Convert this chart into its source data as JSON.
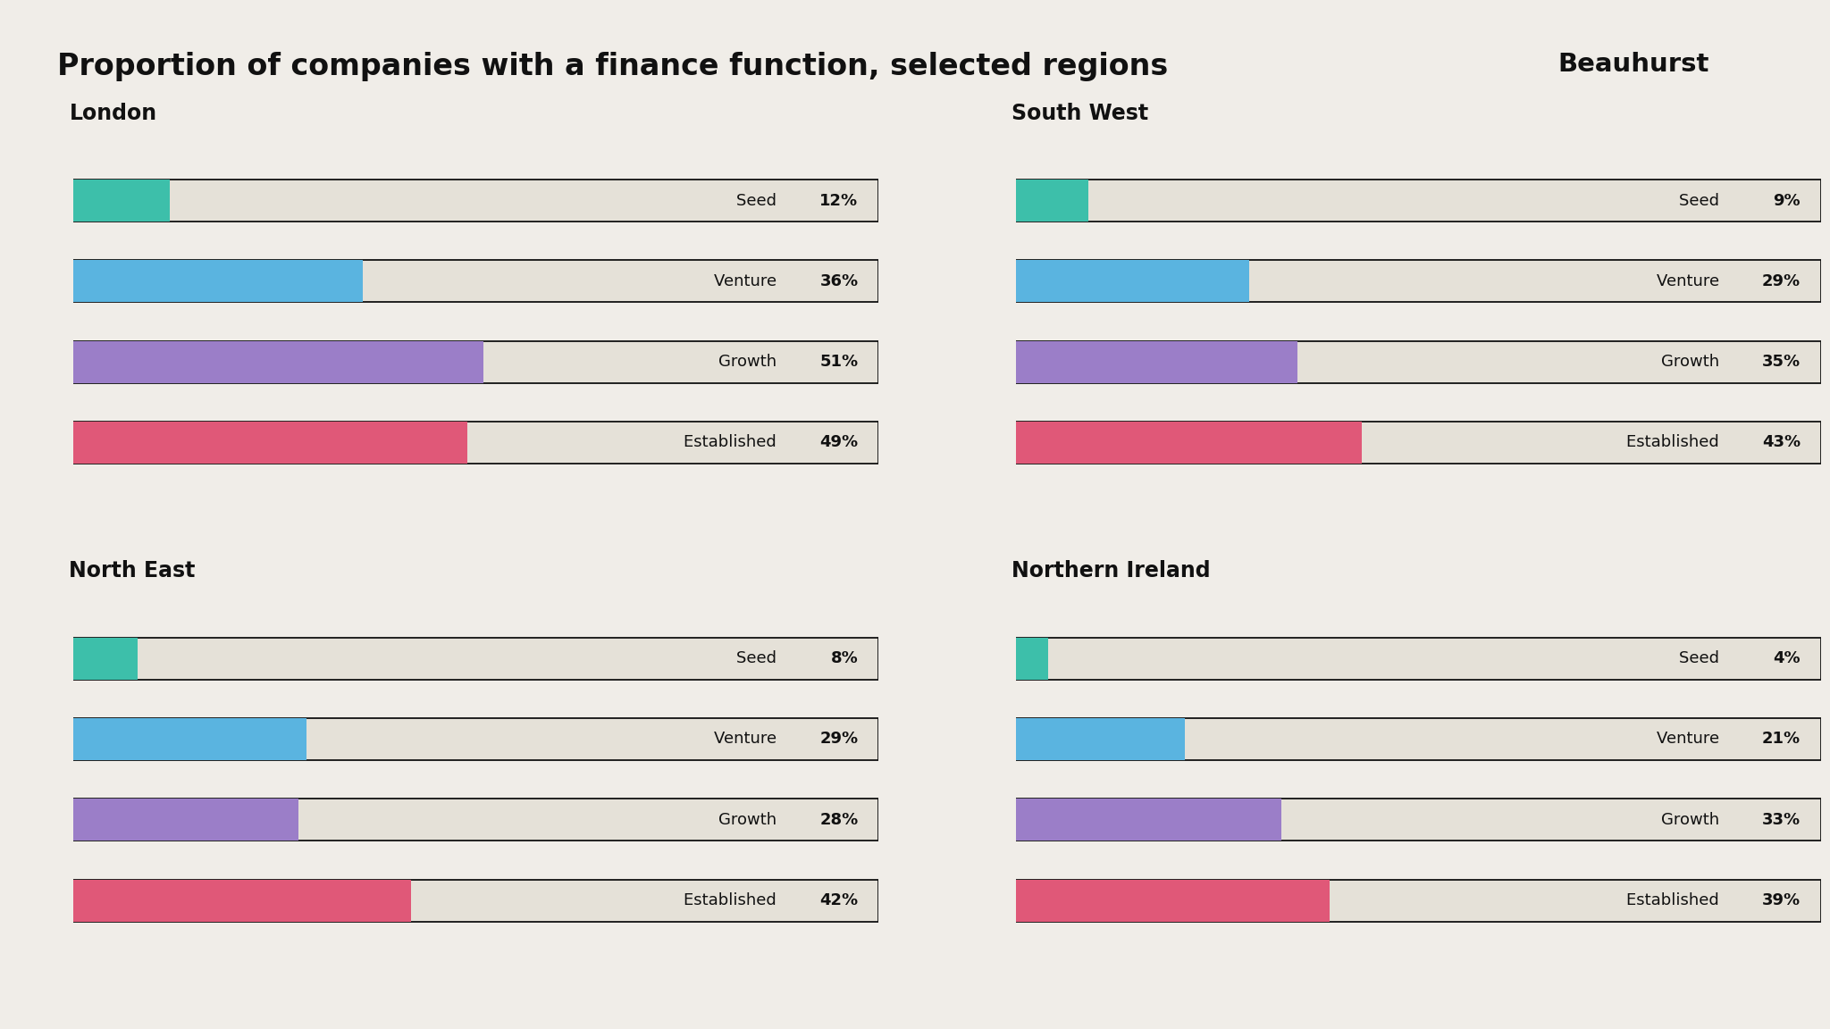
{
  "title": "Proportion of companies with a finance function, selected regions",
  "background_color": "#f0ede8",
  "bar_bg_color": "#e5e1d8",
  "bar_border_color": "#111111",
  "regions": [
    {
      "name": "London",
      "categories": [
        "Seed",
        "Venture",
        "Growth",
        "Established"
      ],
      "values": [
        12,
        36,
        51,
        49
      ],
      "colors": [
        "#3dbfaa",
        "#5ab4e0",
        "#9b7ec8",
        "#e05878"
      ]
    },
    {
      "name": "South West",
      "categories": [
        "Seed",
        "Venture",
        "Growth",
        "Established"
      ],
      "values": [
        9,
        29,
        35,
        43
      ],
      "colors": [
        "#3dbfaa",
        "#5ab4e0",
        "#9b7ec8",
        "#e05878"
      ]
    },
    {
      "name": "North East",
      "categories": [
        "Seed",
        "Venture",
        "Growth",
        "Established"
      ],
      "values": [
        8,
        29,
        28,
        42
      ],
      "colors": [
        "#3dbfaa",
        "#5ab4e0",
        "#9b7ec8",
        "#e05878"
      ]
    },
    {
      "name": "Northern Ireland",
      "categories": [
        "Seed",
        "Venture",
        "Growth",
        "Established"
      ],
      "values": [
        4,
        21,
        33,
        39
      ],
      "colors": [
        "#3dbfaa",
        "#5ab4e0",
        "#9b7ec8",
        "#e05878"
      ]
    }
  ],
  "beauhurst_bg": "#ffe600",
  "beauhurst_text": "Beauhurst",
  "max_value": 100,
  "bar_height": 0.52,
  "title_fontsize": 24,
  "region_title_fontsize": 17,
  "label_fontsize": 13,
  "pct_fontsize": 13
}
